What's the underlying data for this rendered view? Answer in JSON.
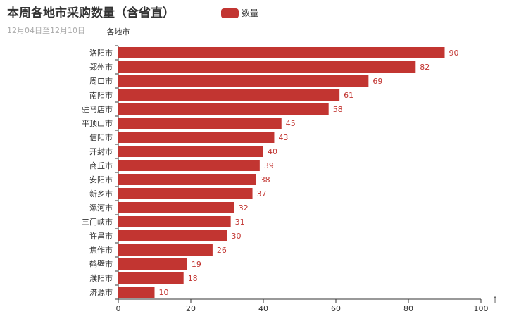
{
  "chart_data": {
    "type": "bar",
    "orientation": "horizontal",
    "title": "本周各地市采购数量（含省直）",
    "subtitle": "12月04日至12月10日",
    "ylabel": "各地市",
    "xlabel": "",
    "xlim": [
      0,
      100
    ],
    "x_ticks": [
      0,
      20,
      40,
      60,
      80,
      100
    ],
    "grid": false,
    "legend_placement": "top-center",
    "bar_color": "#c23531",
    "categories": [
      "洛阳市",
      "郑州市",
      "周口市",
      "南阳市",
      "驻马店市",
      "平顶山市",
      "信阳市",
      "开封市",
      "商丘市",
      "安阳市",
      "新乡市",
      "漯河市",
      "三门峡市",
      "许昌市",
      "焦作市",
      "鹤壁市",
      "濮阳市",
      "济源市"
    ],
    "series": [
      {
        "name": "数量",
        "values": [
          90,
          82,
          69,
          61,
          58,
          45,
          43,
          40,
          39,
          38,
          37,
          32,
          31,
          30,
          26,
          19,
          18,
          10
        ]
      }
    ]
  },
  "toolbox": {
    "icon": "up-arrow-icon",
    "glyph": "↑"
  }
}
